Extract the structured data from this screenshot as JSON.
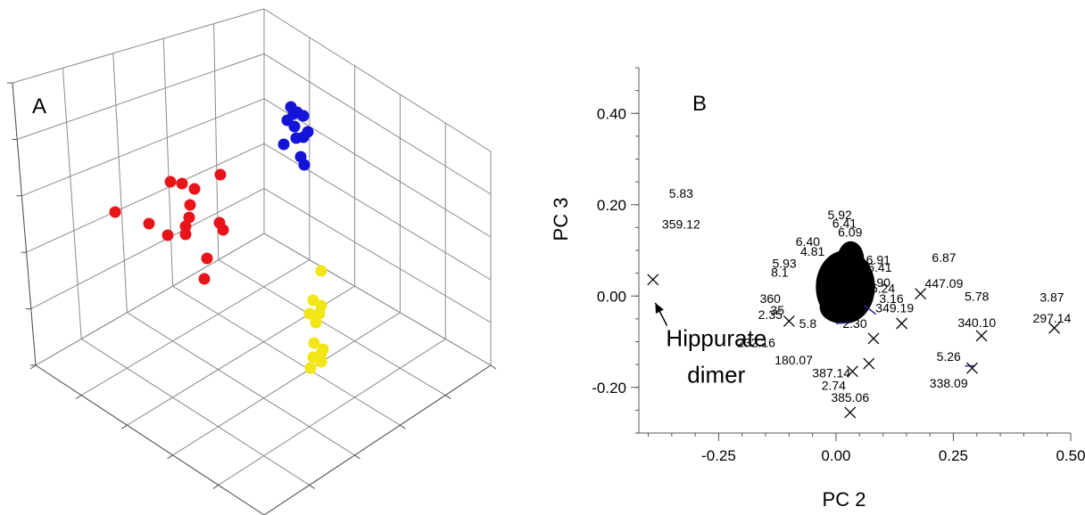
{
  "chart_data": [
    {
      "panel": "A",
      "type": "scatter",
      "label": "A",
      "title": "",
      "xlabel": "",
      "ylabel": "",
      "zlabel": "",
      "grid": true,
      "groups": [
        {
          "color": "#e8141a",
          "points": [
            [
              129,
              238
            ],
            [
              167,
              251
            ],
            [
              188,
              264
            ],
            [
              191,
              204
            ],
            [
              204,
              206
            ],
            [
              218,
              212
            ],
            [
              213,
              230
            ],
            [
              212,
              244
            ],
            [
              208,
              254
            ],
            [
              208,
              263
            ],
            [
              247,
              196
            ],
            [
              246,
              250
            ],
            [
              250,
              258
            ],
            [
              232,
              290
            ],
            [
              229,
              313
            ]
          ]
        },
        {
          "color": "#1414d8",
          "points": [
            [
              326,
              120
            ],
            [
              333,
              126
            ],
            [
              322,
              135
            ],
            [
              340,
              130
            ],
            [
              330,
              142
            ],
            [
              345,
              148
            ],
            [
              318,
              162
            ],
            [
              332,
              155
            ],
            [
              340,
              154
            ],
            [
              337,
              176
            ],
            [
              341,
              185
            ],
            [
              329,
              128
            ]
          ]
        },
        {
          "color": "#f2e616",
          "points": [
            [
              360,
              304
            ],
            [
              351,
              337
            ],
            [
              360,
              343
            ],
            [
              347,
              352
            ],
            [
              358,
              352
            ],
            [
              354,
              362
            ],
            [
              352,
              385
            ],
            [
              362,
              392
            ],
            [
              360,
              397
            ],
            [
              351,
              401
            ],
            [
              360,
              406
            ],
            [
              348,
              413
            ]
          ]
        }
      ]
    },
    {
      "panel": "B",
      "type": "scatter",
      "label": "B",
      "title": "",
      "xlabel": "PC 2",
      "ylabel": "PC 3",
      "xlim": [
        -0.42,
        0.5
      ],
      "ylim": [
        -0.3,
        0.5
      ],
      "x_ticks": [
        -0.25,
        0.0,
        0.25,
        0.5
      ],
      "x_tick_labels": [
        "-0.25",
        "0.00",
        "0.25",
        "0.50"
      ],
      "y_ticks": [
        0.4,
        0.2,
        0.0,
        -0.2
      ],
      "y_tick_labels": [
        "0.40",
        "0.20",
        "0.00",
        "-0.20"
      ],
      "cluster": {
        "center": [
          0.02,
          0.02
        ],
        "rx": 0.063,
        "ry": 0.08
      },
      "cluster_labels": [
        {
          "text": "5.92",
          "x": 0.008,
          "y": 0.168
        },
        {
          "text": "6.41",
          "x": 0.018,
          "y": 0.15
        },
        {
          "text": "6.09",
          "x": 0.03,
          "y": 0.13
        },
        {
          "text": "6.40",
          "x": -0.06,
          "y": 0.11
        },
        {
          "text": "4.81",
          "x": -0.05,
          "y": 0.088
        },
        {
          "text": "6.91",
          "x": 0.09,
          "y": 0.07
        },
        {
          "text": "6.41",
          "x": 0.093,
          "y": 0.053
        },
        {
          "text": "3.90",
          "x": 0.09,
          "y": 0.02
        },
        {
          "text": "5.24",
          "x": 0.1,
          "y": 0.007
        },
        {
          "text": "3.16",
          "x": 0.118,
          "y": -0.015
        },
        {
          "text": "349.19",
          "x": 0.125,
          "y": -0.036
        },
        {
          "text": "5.93",
          "x": -0.11,
          "y": 0.062
        },
        {
          "text": "8.1",
          "x": -0.12,
          "y": 0.042
        },
        {
          "text": "360",
          "x": -0.14,
          "y": -0.015
        },
        {
          "text": "35",
          "x": -0.125,
          "y": -0.04
        },
        {
          "text": "2.35",
          "x": -0.14,
          "y": -0.05
        },
        {
          "text": "5.8",
          "x": -0.06,
          "y": -0.07
        },
        {
          "text": "2.30",
          "x": 0.04,
          "y": -0.07
        },
        {
          "text": "232.16",
          "x": -0.17,
          "y": -0.112
        },
        {
          "text": "180.07",
          "x": -0.09,
          "y": -0.15
        },
        {
          "text": "387.14",
          "x": -0.01,
          "y": -0.178
        },
        {
          "text": "2.74",
          "x": -0.005,
          "y": -0.205
        }
      ],
      "points": [
        {
          "x": -0.39,
          "y": 0.036,
          "labels": [
            "5.83",
            "359.12"
          ],
          "label_x": -0.33,
          "label_y": [
            0.215,
            0.148
          ]
        },
        {
          "x": 0.03,
          "y": -0.255,
          "labels": [
            "385.06"
          ],
          "label_x": 0.03,
          "label_y": [
            -0.232
          ]
        },
        {
          "x": 0.07,
          "y": -0.148,
          "labels": [],
          "label_x": 0,
          "label_y": []
        },
        {
          "x": 0.035,
          "y": -0.165,
          "labels": [],
          "label_x": 0,
          "label_y": []
        },
        {
          "x": 0.08,
          "y": -0.093,
          "labels": [],
          "label_x": 0,
          "label_y": []
        },
        {
          "x": 0.14,
          "y": -0.06,
          "labels": [],
          "label_x": 0,
          "label_y": []
        },
        {
          "x": -0.1,
          "y": -0.055,
          "labels": [],
          "label_x": 0,
          "label_y": []
        },
        {
          "x": 0.31,
          "y": -0.087,
          "labels": [
            "5.78",
            "340.10"
          ],
          "label_x": 0.3,
          "label_y": [
            -0.01,
            -0.068
          ]
        },
        {
          "x": 0.29,
          "y": -0.158,
          "labels": [
            "5.26",
            "338.09"
          ],
          "label_x": 0.24,
          "label_y": [
            -0.142,
            -0.2
          ]
        },
        {
          "x": 0.465,
          "y": -0.07,
          "labels": [
            "3.87",
            "297.14"
          ],
          "label_x": 0.46,
          "label_y": [
            -0.012,
            -0.058
          ]
        },
        {
          "x": 0.18,
          "y": 0.005,
          "labels": [
            "6.87",
            "447.09"
          ],
          "label_x": 0.23,
          "label_y": [
            0.075,
            0.018
          ]
        }
      ],
      "annotation": {
        "lines": [
          "Hippurate",
          "dimer"
        ],
        "text_x": -0.255,
        "text_y": [
          -0.11,
          -0.19
        ],
        "arrow_from": [
          -0.36,
          -0.065
        ],
        "arrow_to": [
          -0.385,
          -0.015
        ]
      }
    }
  ]
}
